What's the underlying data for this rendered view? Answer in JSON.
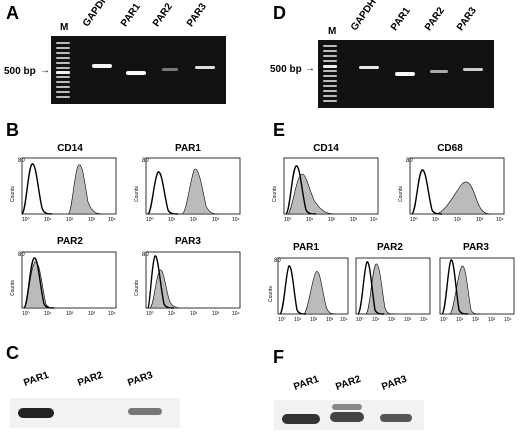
{
  "panels": {
    "A": {
      "letter": "A",
      "ladder_label": "M",
      "lanes": [
        "GAPDH",
        "PAR1",
        "PAR2",
        "PAR3"
      ],
      "marker": "500 bp"
    },
    "D": {
      "letter": "D",
      "ladder_label": "M",
      "lanes": [
        "GAPDH",
        "PAR1",
        "PAR2",
        "PAR3"
      ],
      "marker": "500 bp"
    },
    "B": {
      "letter": "B",
      "histograms": [
        {
          "title": "CD14",
          "ymax": "80",
          "ylabel": "Counts"
        },
        {
          "title": "PAR1",
          "ymax": "80",
          "ylabel": "Counts"
        },
        {
          "title": "PAR2",
          "ymax": "80",
          "ylabel": "Counts"
        },
        {
          "title": "PAR3",
          "ymax": "80",
          "ylabel": "Counts"
        }
      ]
    },
    "E": {
      "letter": "E",
      "histograms": [
        {
          "title": "CD14",
          "ymax": "",
          "ylabel": "Counts"
        },
        {
          "title": "CD68",
          "ymax": "80",
          "ylabel": "Counts"
        },
        {
          "title": "PAR1",
          "ymax": "80",
          "ylabel": "Counts"
        },
        {
          "title": "PAR2",
          "ymax": "",
          "ylabel": "Counts"
        },
        {
          "title": "PAR3",
          "ymax": "",
          "ylabel": "Counts"
        }
      ]
    },
    "C": {
      "letter": "C",
      "lanes": [
        "PAR1",
        "PAR2",
        "PAR3"
      ]
    },
    "F": {
      "letter": "F",
      "lanes": [
        "PAR1",
        "PAR2",
        "PAR3"
      ]
    }
  },
  "x_ticks": [
    "10⁰",
    "10¹",
    "10²",
    "10³",
    "10⁴"
  ]
}
